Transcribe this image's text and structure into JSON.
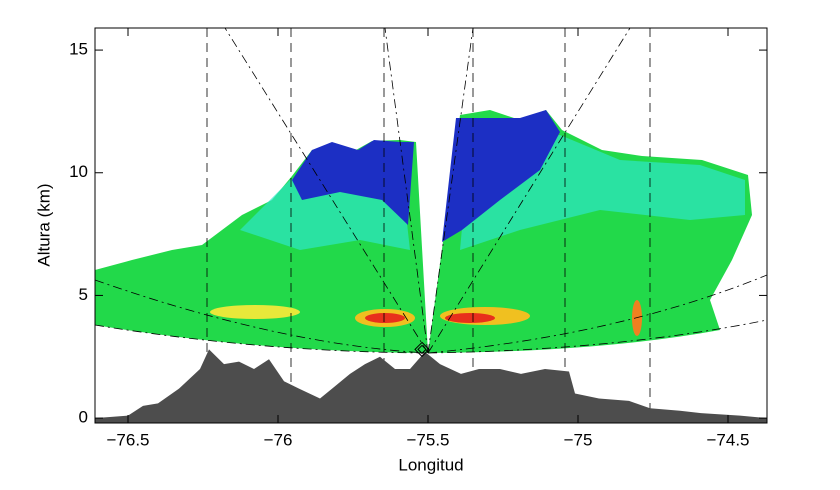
{
  "chart_data": {
    "type": "area",
    "xlabel": "Longitud",
    "ylabel": "Altura (km)",
    "xlim": [
      -76.61,
      -74.37
    ],
    "ylim": [
      -0.2,
      15.9
    ],
    "xticks": [
      -76.5,
      -76.0,
      -75.5,
      -75.0,
      -74.5
    ],
    "yticks": [
      0,
      5,
      10,
      15
    ],
    "color": "#4d4d4d",
    "x": [
      -76.61,
      -76.5,
      -76.45,
      -76.4,
      -76.33,
      -76.26,
      -76.23,
      -76.18,
      -76.13,
      -76.08,
      -76.03,
      -75.98,
      -75.93,
      -75.86,
      -75.81,
      -75.76,
      -75.71,
      -75.66,
      -75.61,
      -75.56,
      -75.51,
      -75.46,
      -75.39,
      -75.33,
      -75.26,
      -75.19,
      -75.11,
      -75.03,
      -75.01,
      -74.93,
      -74.83,
      -74.76,
      -74.66,
      -74.59,
      -74.46,
      -74.37
    ],
    "values": [
      0,
      0.1,
      0.5,
      0.6,
      1.2,
      2.0,
      2.8,
      2.2,
      2.3,
      2.0,
      2.4,
      1.5,
      1.2,
      0.8,
      1.3,
      1.8,
      2.2,
      2.5,
      2.0,
      2.0,
      2.7,
      2.2,
      1.8,
      2.0,
      2.0,
      1.8,
      2.0,
      1.9,
      1.0,
      0.8,
      0.7,
      0.4,
      0.3,
      0.2,
      0.1,
      0
    ],
    "radar": {
      "x": -75.52,
      "y": 2.8
    }
  }
}
